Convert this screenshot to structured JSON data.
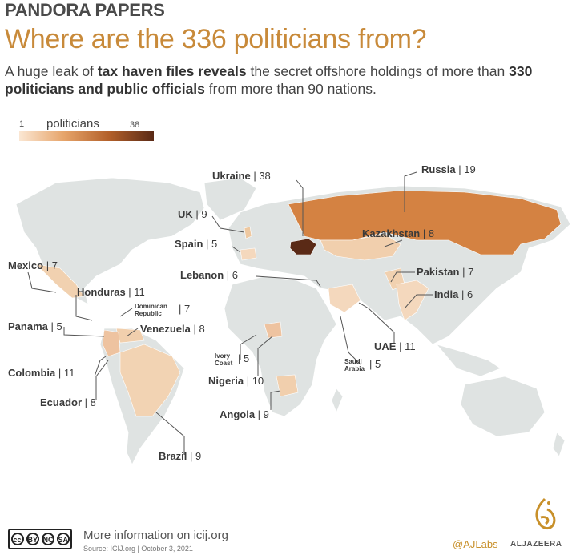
{
  "header": {
    "kicker": "PANDORA PAPERS",
    "title": "Where are the 336 politicians from?",
    "subtitle_1": "A huge leak of ",
    "subtitle_b1": "tax haven files reveals",
    "subtitle_2": " the secret offshore holdings of more than ",
    "subtitle_b2": "330 politicians and public officials",
    "subtitle_3": " from more than 90 nations."
  },
  "legend": {
    "min": "1",
    "label": "politicians",
    "max": "38",
    "colors": [
      "#fbe7d3",
      "#e6a46a",
      "#b3602a",
      "#5a2a16"
    ]
  },
  "countries": [
    {
      "name": "Ukraine",
      "count": "38"
    },
    {
      "name": "Russia",
      "count": "19"
    },
    {
      "name": "UK",
      "count": "9"
    },
    {
      "name": "Spain",
      "count": "5"
    },
    {
      "name": "Kazakhstan",
      "count": "8"
    },
    {
      "name": "Mexico",
      "count": "7"
    },
    {
      "name": "Lebanon",
      "count": "6"
    },
    {
      "name": "Pakistan",
      "count": "7"
    },
    {
      "name": "Honduras",
      "count": "11"
    },
    {
      "name": "India",
      "count": "6"
    },
    {
      "name": "Dominican Republic",
      "count": "7"
    },
    {
      "name": "Panama",
      "count": "5"
    },
    {
      "name": "Venezuela",
      "count": "8"
    },
    {
      "name": "UAE",
      "count": "11"
    },
    {
      "name": "Ivory Coast",
      "count": "5"
    },
    {
      "name": "Saudi Arabia",
      "count": "5"
    },
    {
      "name": "Colombia",
      "count": "11"
    },
    {
      "name": "Nigeria",
      "count": "10"
    },
    {
      "name": "Ecuador",
      "count": "8"
    },
    {
      "name": "Angola",
      "count": "9"
    },
    {
      "name": "Brazil",
      "count": "9"
    }
  ],
  "label_text": {
    "dom1": "Dominican",
    "dom2": "Republic",
    "ivory1": "Ivory",
    "ivory2": "Coast",
    "saudi1": "Saudi",
    "saudi2": "Arabia"
  },
  "footer": {
    "cc": [
      "cc",
      "BY",
      "NC",
      "SA"
    ],
    "more": "More information on icij.org",
    "source": "Source: ICIJ.org | October 3, 2021",
    "ajlabs": "@AJLabs",
    "aljazeera": "ALJAZEERA"
  },
  "colors": {
    "land": "#dfe3e2",
    "low": "#f4d8bd",
    "mid": "#e0a772",
    "high": "#d27f3f",
    "max": "#5a2a16",
    "title": "#c88a3a"
  }
}
